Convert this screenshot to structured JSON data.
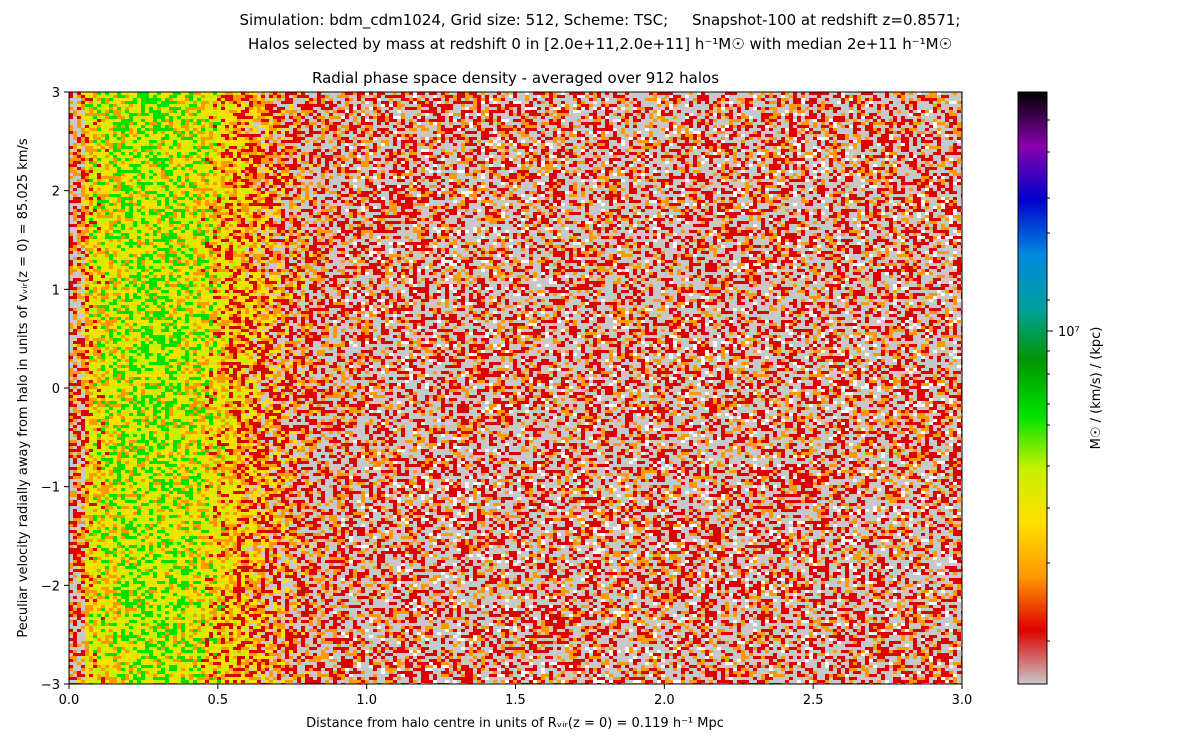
{
  "figure": {
    "suptitle_line1": "Simulation: bdm_cdm1024, Grid size: 512, Scheme: TSC;     Snapshot-100 at redshift z=0.8571;",
    "suptitle_line2": "Halos selected by mass at redshift 0 in [2.0e+11,2.0e+11] h⁻¹M☉ with median 2e+11 h⁻¹M☉"
  },
  "chart_data": {
    "type": "heatmap",
    "title": "Radial phase space density - averaged over 912 halos",
    "xlabel": "Distance from halo centre in units of  Rᵥᵢᵣ(z = 0) = 0.119 h⁻¹ Mpc",
    "ylabel": "Peculiar velocity radially away from halo in units of  vᵥᵢᵣ(z = 0) = 85.025 km/s",
    "xlim": [
      0.0,
      3.0
    ],
    "ylim": [
      -3,
      3
    ],
    "x_ticks": [
      0.0,
      0.5,
      1.0,
      1.5,
      2.0,
      2.5,
      3.0
    ],
    "x_tick_labels": [
      "0.0",
      "0.5",
      "1.0",
      "1.5",
      "2.0",
      "2.5",
      "3.0"
    ],
    "y_ticks": [
      -3,
      -2,
      -1,
      0,
      1,
      2,
      3
    ],
    "y_tick_labels": [
      "−3",
      "−2",
      "−1",
      "0",
      "1",
      "2",
      "3"
    ],
    "colorbar": {
      "label": "M☉ / (km/s) / (kpc)",
      "scale": "log",
      "major_tick_label": "10⁷",
      "colormap": [
        "#c8c8c8",
        "#dd0000",
        "#ff9900",
        "#ffe000",
        "#c8f000",
        "#00e000",
        "#009600",
        "#00a0a0",
        "#0088dd",
        "#0000cc",
        "#8800aa",
        "#000000"
      ]
    },
    "density_description": "peak density at small radii (~0.1-0.5 R_vir) across all velocities, decreasing outward"
  }
}
